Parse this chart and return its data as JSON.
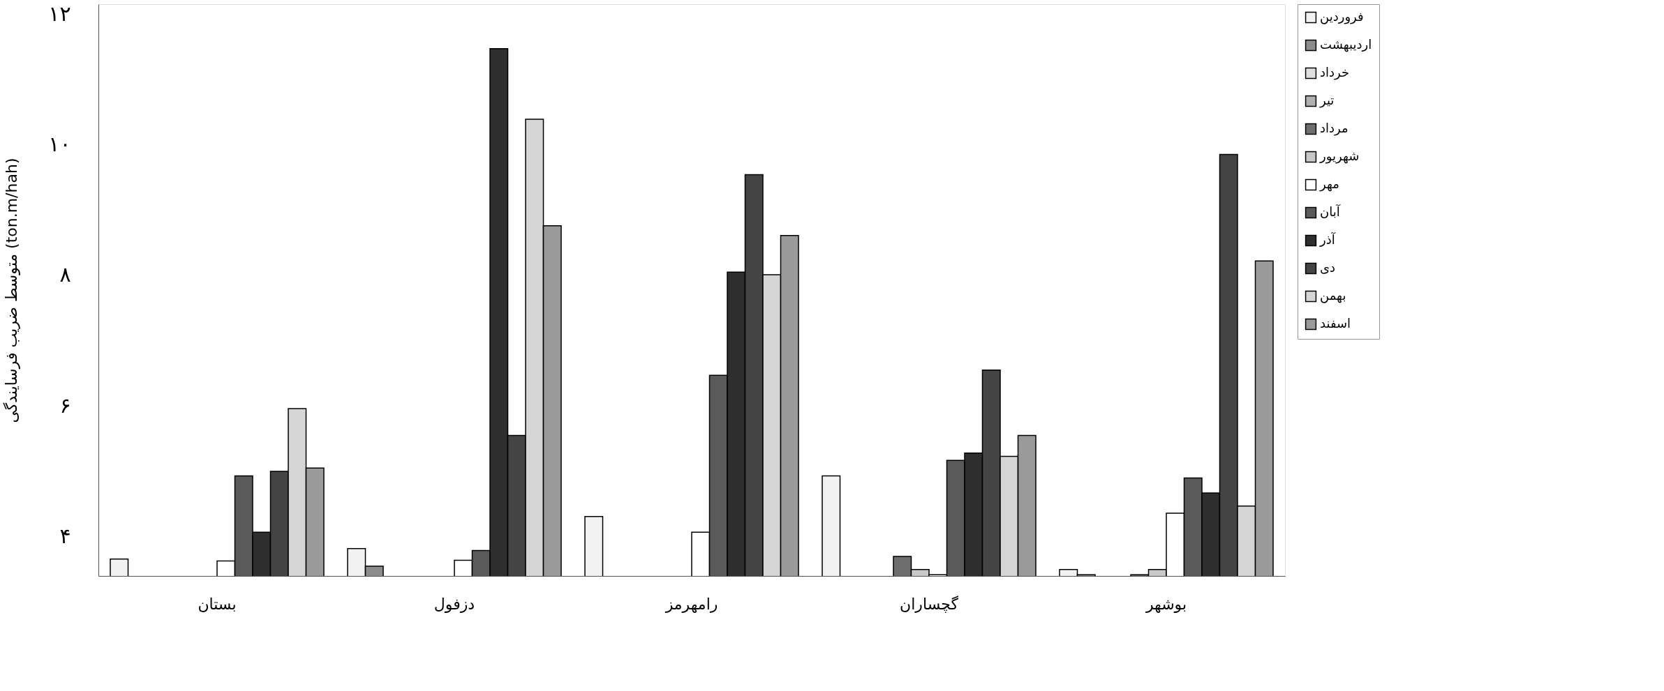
{
  "chart_data": {
    "type": "bar",
    "ylabel": "متوسط ضریب فرسایندگی (ton.m/hah)",
    "categories": [
      "بستان",
      "دزفول",
      "رامهرمز",
      "گچساران",
      "بوشهر"
    ],
    "series": [
      {
        "name": "فروردین",
        "color": "#f2f2f2",
        "values": [
          3.66,
          3.82,
          4.31,
          4.93,
          3.5
        ]
      },
      {
        "name": "اردیبهشت",
        "color": "#8c8c8c",
        "values": [
          null,
          3.55,
          null,
          null,
          3.42
        ]
      },
      {
        "name": "خرداد",
        "color": "#e0e0e0",
        "values": [
          null,
          null,
          null,
          null,
          null
        ]
      },
      {
        "name": "تیر",
        "color": "#b0b0b0",
        "values": [
          null,
          null,
          null,
          null,
          null
        ]
      },
      {
        "name": "مرداد",
        "color": "#6e6e6e",
        "values": [
          null,
          null,
          null,
          3.7,
          3.42
        ]
      },
      {
        "name": "شهریور",
        "color": "#c8c8c8",
        "values": [
          null,
          null,
          null,
          3.5,
          3.5
        ]
      },
      {
        "name": "مهر",
        "color": "#ffffff",
        "values": [
          3.63,
          3.64,
          4.07,
          3.42,
          4.36
        ]
      },
      {
        "name": "آبان",
        "color": "#5a5a5a",
        "values": [
          4.93,
          3.79,
          6.47,
          5.17,
          4.9
        ]
      },
      {
        "name": "آذر",
        "color": "#2e2e2e",
        "values": [
          4.07,
          11.47,
          8.05,
          5.28,
          4.67
        ]
      },
      {
        "name": "دی",
        "color": "#444444",
        "values": [
          5.0,
          5.55,
          9.54,
          6.55,
          9.85
        ]
      },
      {
        "name": "بهمن",
        "color": "#d6d6d6",
        "values": [
          5.96,
          10.39,
          8.01,
          5.23,
          4.47
        ]
      },
      {
        "name": "اسفند",
        "color": "#9a9a9a",
        "values": [
          5.05,
          8.76,
          8.61,
          5.55,
          8.22
        ]
      }
    ],
    "ylim": [
      3.4,
      12.15
    ],
    "yticks": [
      {
        "value": 4,
        "label": "۴"
      },
      {
        "value": 6,
        "label": "۶"
      },
      {
        "value": 8,
        "label": "۸"
      },
      {
        "value": 10,
        "label": "۱۰"
      },
      {
        "value": 12,
        "label": "۱۲"
      }
    ],
    "legend": "right",
    "grid": false
  }
}
